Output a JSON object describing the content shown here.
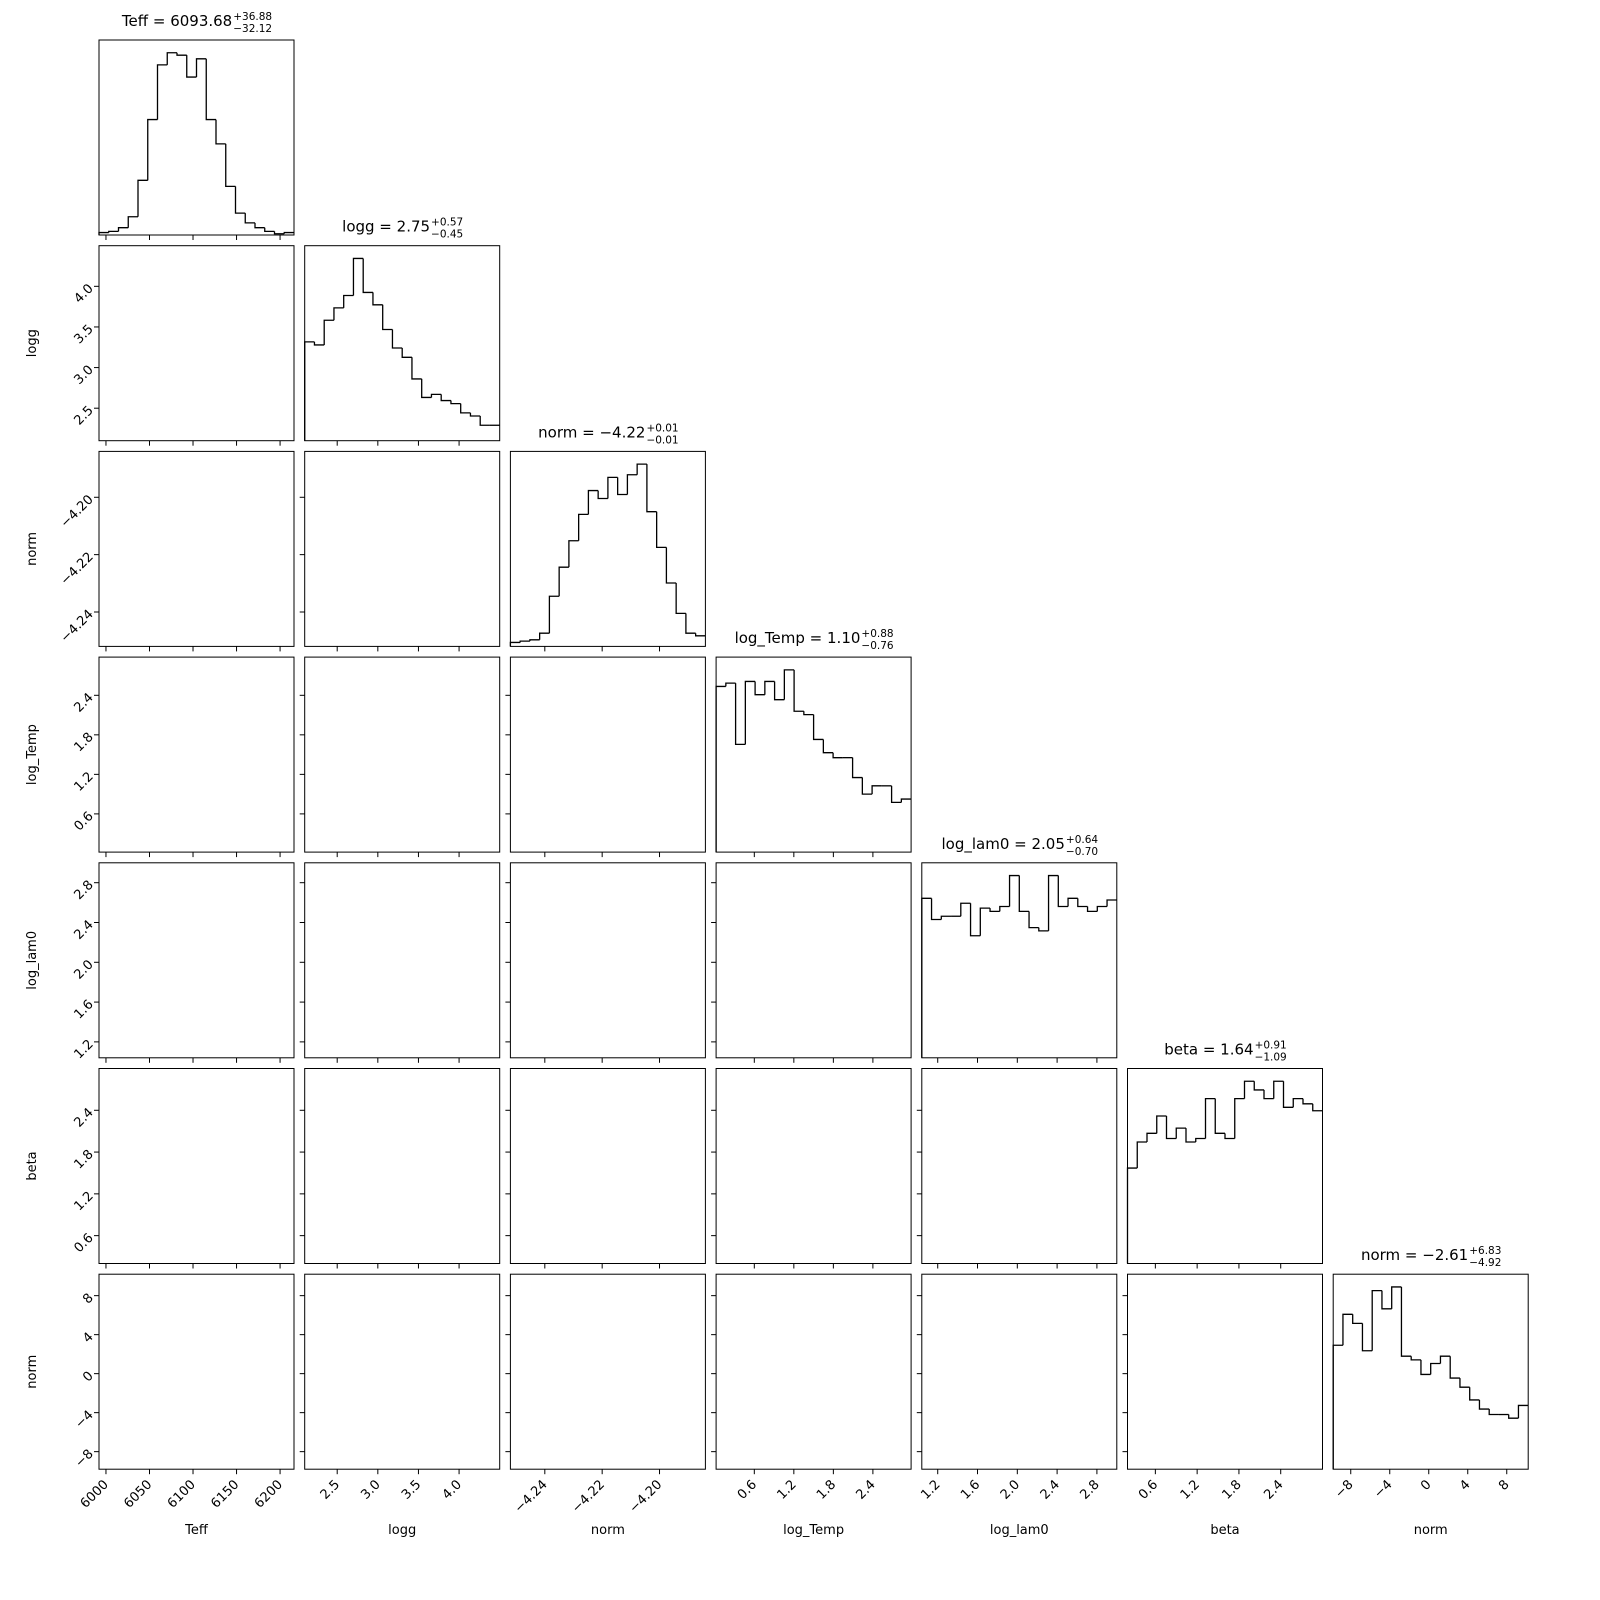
{
  "chart_data": {
    "type": "corner",
    "color": "#000000",
    "params": [
      {
        "label": "Teff",
        "title": "Teff = 6093.68",
        "upper": "+36.88",
        "lower": "−32.12",
        "lim": [
          5992,
          6216
        ],
        "ticks": [
          6000,
          6050,
          6100,
          6150,
          6200
        ],
        "bins": [
          5992,
          6003.2,
          6014.4,
          6025.6,
          6036.8,
          6048,
          6059.2,
          6070.4,
          6081.6,
          6092.8,
          6104,
          6115.2,
          6126.4,
          6137.6,
          6148.8,
          6160,
          6171.2,
          6182.4,
          6193.6,
          6204.8,
          6216
        ],
        "counts": [
          2,
          3,
          6,
          15,
          45,
          95,
          140,
          150,
          148,
          130,
          145,
          95,
          75,
          40,
          18,
          10,
          6,
          3,
          1,
          2
        ]
      },
      {
        "label": "logg",
        "title": "logg = 2.75",
        "upper": "+0.57",
        "lower": "−0.45",
        "lim": [
          2.1,
          4.5
        ],
        "ticks": [
          2.5,
          {
            "value": 3,
            "label": "3.0"
          },
          3.5,
          {
            "value": 4,
            "label": "4.0"
          }
        ],
        "bins": [
          2.1,
          2.22,
          2.34,
          2.46,
          2.58,
          2.7,
          2.82,
          2.94,
          3.06,
          3.18,
          3.3,
          3.42,
          3.54,
          3.66,
          3.78,
          3.9,
          4.02,
          4.14,
          4.26,
          4.38,
          4.5
        ],
        "counts": [
          64,
          62,
          78,
          86,
          94,
          118,
          96,
          88,
          72,
          60,
          54,
          40,
          28,
          30,
          26,
          24,
          18,
          16,
          10,
          10
        ]
      },
      {
        "label": "norm",
        "title": "norm = −4.22",
        "upper": "+0.01",
        "lower": "−0.01",
        "lim": [
          -4.252,
          -4.184
        ],
        "ticks": [
          {
            "value": -4.24,
            "label": "−4.24"
          },
          {
            "value": -4.22,
            "label": "−4.22"
          },
          {
            "value": -4.2,
            "label": "−4.20"
          }
        ],
        "bins": [
          -4.252,
          -4.2486,
          -4.2452,
          -4.2418,
          -4.2384,
          -4.235,
          -4.2316,
          -4.2282,
          -4.2248,
          -4.2214,
          -4.218,
          -4.2146,
          -4.2112,
          -4.2078,
          -4.2044,
          -4.201,
          -4.1976,
          -4.1942,
          -4.1908,
          -4.1874,
          -4.184
        ],
        "counts": [
          3,
          4,
          5,
          10,
          38,
          60,
          80,
          100,
          118,
          112,
          128,
          115,
          130,
          138,
          102,
          75,
          48,
          25,
          10,
          8
        ]
      },
      {
        "label": "log_Temp",
        "title": "log_Temp = 1.10",
        "upper": "+0.88",
        "lower": "−0.76",
        "lim": [
          0.02,
          2.98
        ],
        "ticks": [
          0.6,
          1.2,
          1.8,
          2.4
        ],
        "bins": [
          0.02,
          0.168,
          0.316,
          0.464,
          0.612,
          0.76,
          0.908,
          1.056,
          1.204,
          1.352,
          1.5,
          1.648,
          1.796,
          1.944,
          2.092,
          2.24,
          2.388,
          2.536,
          2.684,
          2.832,
          2.98
        ],
        "counts": [
          100,
          102,
          65,
          103,
          95,
          103,
          92,
          110,
          85,
          83,
          68,
          60,
          57,
          57,
          45,
          35,
          40,
          40,
          30,
          32
        ]
      },
      {
        "label": "log_lam0",
        "title": "log_lam0 = 2.05",
        "upper": "+0.64",
        "lower": "−0.70",
        "lim": [
          1.04,
          3.0
        ],
        "ticks": [
          1.2,
          1.6,
          {
            "value": 2,
            "label": "2.0"
          },
          2.4,
          2.8
        ],
        "bins": [
          1.04,
          1.138,
          1.236,
          1.334,
          1.432,
          1.53,
          1.628,
          1.726,
          1.824,
          1.922,
          2.02,
          2.118,
          2.216,
          2.314,
          2.412,
          2.51,
          2.608,
          2.706,
          2.804,
          2.902,
          3.0
        ],
        "counts": [
          98,
          85,
          87,
          87,
          95,
          75,
          92,
          90,
          93,
          112,
          90,
          80,
          78,
          112,
          93,
          98,
          93,
          90,
          93,
          97
        ]
      },
      {
        "label": "beta",
        "title": "beta = 1.64",
        "upper": "+0.91",
        "lower": "−1.09",
        "lim": [
          0.2,
          3.0
        ],
        "ticks": [
          0.6,
          1.2,
          1.8,
          2.4
        ],
        "bins": [
          0.2,
          0.34,
          0.48,
          0.62,
          0.76,
          0.9,
          1.04,
          1.18,
          1.32,
          1.46,
          1.6,
          1.74,
          1.88,
          2.02,
          2.16,
          2.3,
          2.44,
          2.58,
          2.72,
          2.86,
          3.0
        ],
        "counts": [
          55,
          70,
          75,
          85,
          72,
          78,
          70,
          72,
          95,
          75,
          72,
          95,
          105,
          100,
          95,
          105,
          90,
          95,
          92,
          88
        ]
      },
      {
        "label": "norm",
        "title": "norm = −2.61",
        "upper": "+6.83",
        "lower": "−4.92",
        "lim": [
          -9.8,
          10.2
        ],
        "ticks": [
          {
            "value": -8,
            "label": "−8"
          },
          {
            "value": -4,
            "label": "−4"
          },
          0,
          4,
          8
        ],
        "bins": [
          -9.8,
          -8.8,
          -7.8,
          -6.8,
          -5.8,
          -4.8,
          -3.8,
          -2.8,
          -1.8,
          -0.8,
          0.2,
          1.2,
          2.2,
          3.2,
          4.2,
          5.2,
          6.2,
          7.2,
          8.2,
          9.2,
          10.2
        ],
        "counts": [
          68,
          85,
          80,
          65,
          98,
          88,
          100,
          62,
          60,
          52,
          58,
          62,
          50,
          45,
          38,
          33,
          30,
          30,
          28,
          35
        ]
      }
    ]
  }
}
